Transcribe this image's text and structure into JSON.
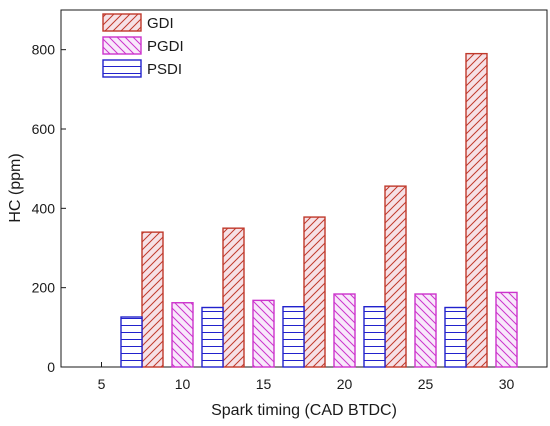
{
  "chart_data": {
    "type": "bar",
    "xlabel": "Spark timing (CAD BTDC)",
    "ylabel": "HC (ppm)",
    "categories": [
      "5",
      "10",
      "15",
      "20",
      "25",
      "30"
    ],
    "ylim": [
      0,
      900
    ],
    "yticks": [
      0,
      200,
      400,
      600,
      800
    ],
    "grid": false,
    "legend_position": "top-left",
    "series": [
      {
        "name": "GDI",
        "color": "#c0392b",
        "pattern": "diagonal-right",
        "values": [
          null,
          340,
          350,
          378,
          456,
          790
        ]
      },
      {
        "name": "PGDI",
        "color": "#cc33cc",
        "pattern": "diagonal-left",
        "values": [
          null,
          162,
          168,
          184,
          184,
          188
        ]
      },
      {
        "name": "PSDI",
        "color": "#2222cc",
        "pattern": "horizontal",
        "values": [
          126,
          150,
          152,
          152,
          150,
          null
        ]
      }
    ]
  }
}
